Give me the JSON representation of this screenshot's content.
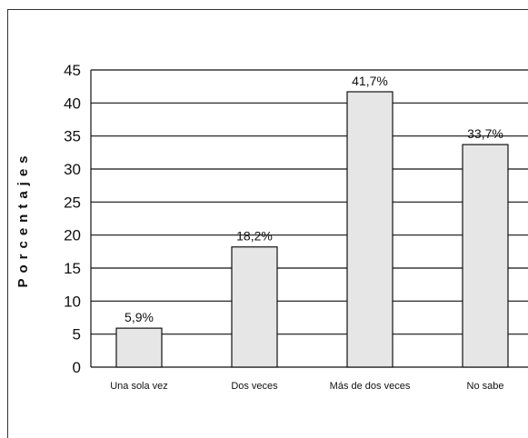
{
  "chart_data": {
    "type": "bar",
    "categories": [
      "Una sola vez",
      "Dos veces",
      "Más de dos veces",
      "No sabe"
    ],
    "values": [
      5.9,
      18.2,
      41.7,
      33.7
    ],
    "data_labels": [
      "5,9%",
      "18,2%",
      "41,7%",
      "33,7%"
    ],
    "ylabel": "Porcentajes",
    "xlabel": "",
    "ylim": [
      0,
      45
    ],
    "yticks": [
      0,
      5,
      10,
      15,
      20,
      25,
      30,
      35,
      40,
      45
    ],
    "grid": true,
    "bar_color": "#e6e6e6"
  }
}
